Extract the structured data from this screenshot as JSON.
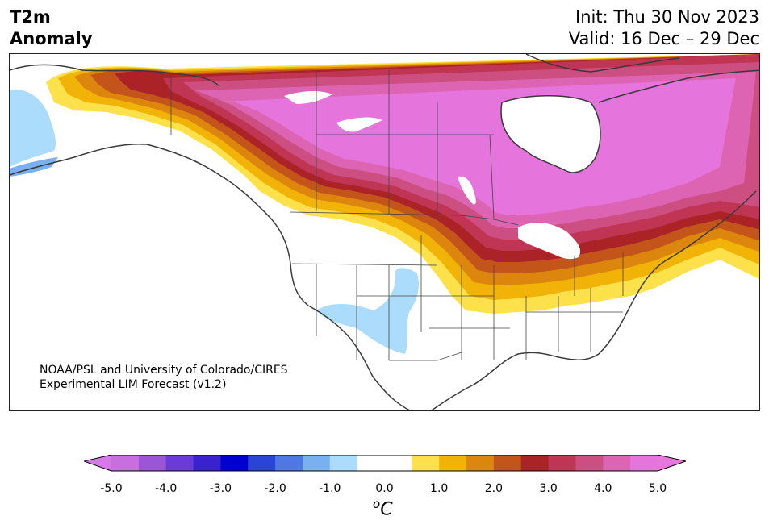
{
  "header": {
    "var_line1": "T2m",
    "var_line2": "Anomaly",
    "init": "Init: Thu 30 Nov 2023",
    "valid": "Valid: 16 Dec – 29 Dec"
  },
  "credit": {
    "line1": "NOAA/PSL and University of Colorado/CIRES",
    "line2": "Experimental LIM Forecast (v1.2)"
  },
  "colorbar": {
    "unit": "C",
    "unit_sup": "o",
    "ticks": [
      "-5.0",
      "-4.0",
      "-3.0",
      "-2.0",
      "-1.0",
      "0.0",
      "1.0",
      "2.0",
      "3.0",
      "4.0",
      "5.0"
    ],
    "colors": [
      "#c86fe0",
      "#9a55d8",
      "#6a3bd8",
      "#3a22d0",
      "#0000cf",
      "#2a44d8",
      "#4f77e6",
      "#79b1f0",
      "#abdcfb",
      "#ffffff",
      "#ffffff",
      "#fde14a",
      "#f1b307",
      "#dd860e",
      "#c4551a",
      "#ab2227",
      "#c03553",
      "#cd4e80",
      "#dd63b3",
      "#e574dc"
    ],
    "under_color": "#d778e8",
    "over_color": "#e678dc"
  },
  "map": {
    "ocean": "#ffffff",
    "coast_color": "#3a3a3a"
  }
}
